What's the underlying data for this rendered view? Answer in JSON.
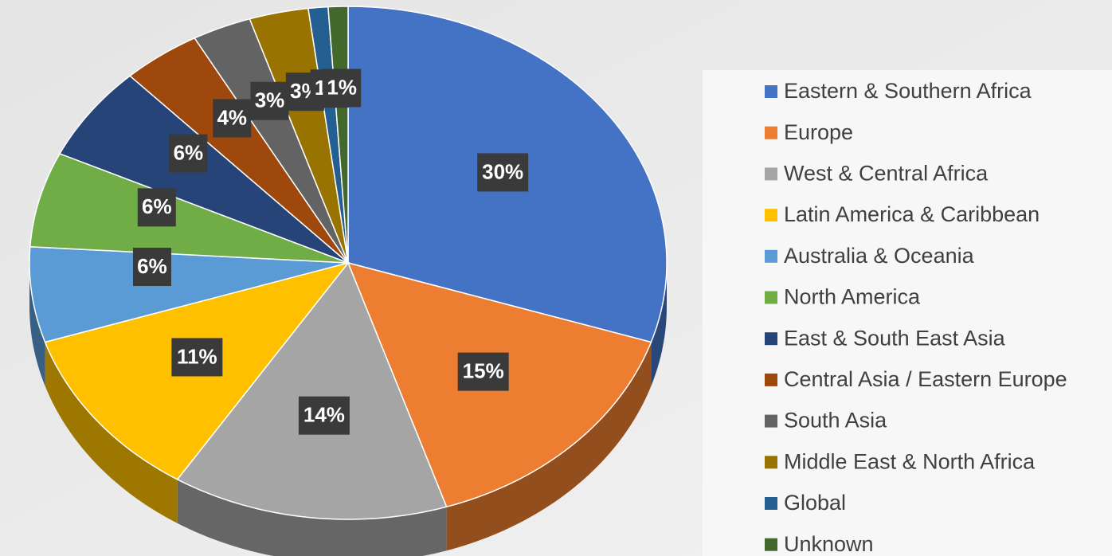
{
  "chart_data": {
    "type": "pie",
    "categories": [
      "Eastern & Southern Africa",
      "Europe",
      "West & Central Africa",
      "Latin America & Caribbean",
      "Australia & Oceania",
      "North America",
      "East & South East Asia",
      "Central Asia / Eastern Europe",
      "South Asia",
      "Middle East & North Africa",
      "Global",
      "Unknown"
    ],
    "values": [
      30,
      15,
      14,
      11,
      6,
      6,
      6,
      4,
      3,
      3,
      1,
      1
    ],
    "value_labels": [
      "30%",
      "15%",
      "14%",
      "11%",
      "6%",
      "6%",
      "6%",
      "4%",
      "3%",
      "3%",
      "1%",
      "1%"
    ],
    "colors": [
      "#4472c4",
      "#ed7d31",
      "#a5a5a5",
      "#ffc000",
      "#5b9bd5",
      "#70ad47",
      "#264478",
      "#9e480e",
      "#636363",
      "#997300",
      "#255e91",
      "#43682b"
    ],
    "legend": "right"
  }
}
